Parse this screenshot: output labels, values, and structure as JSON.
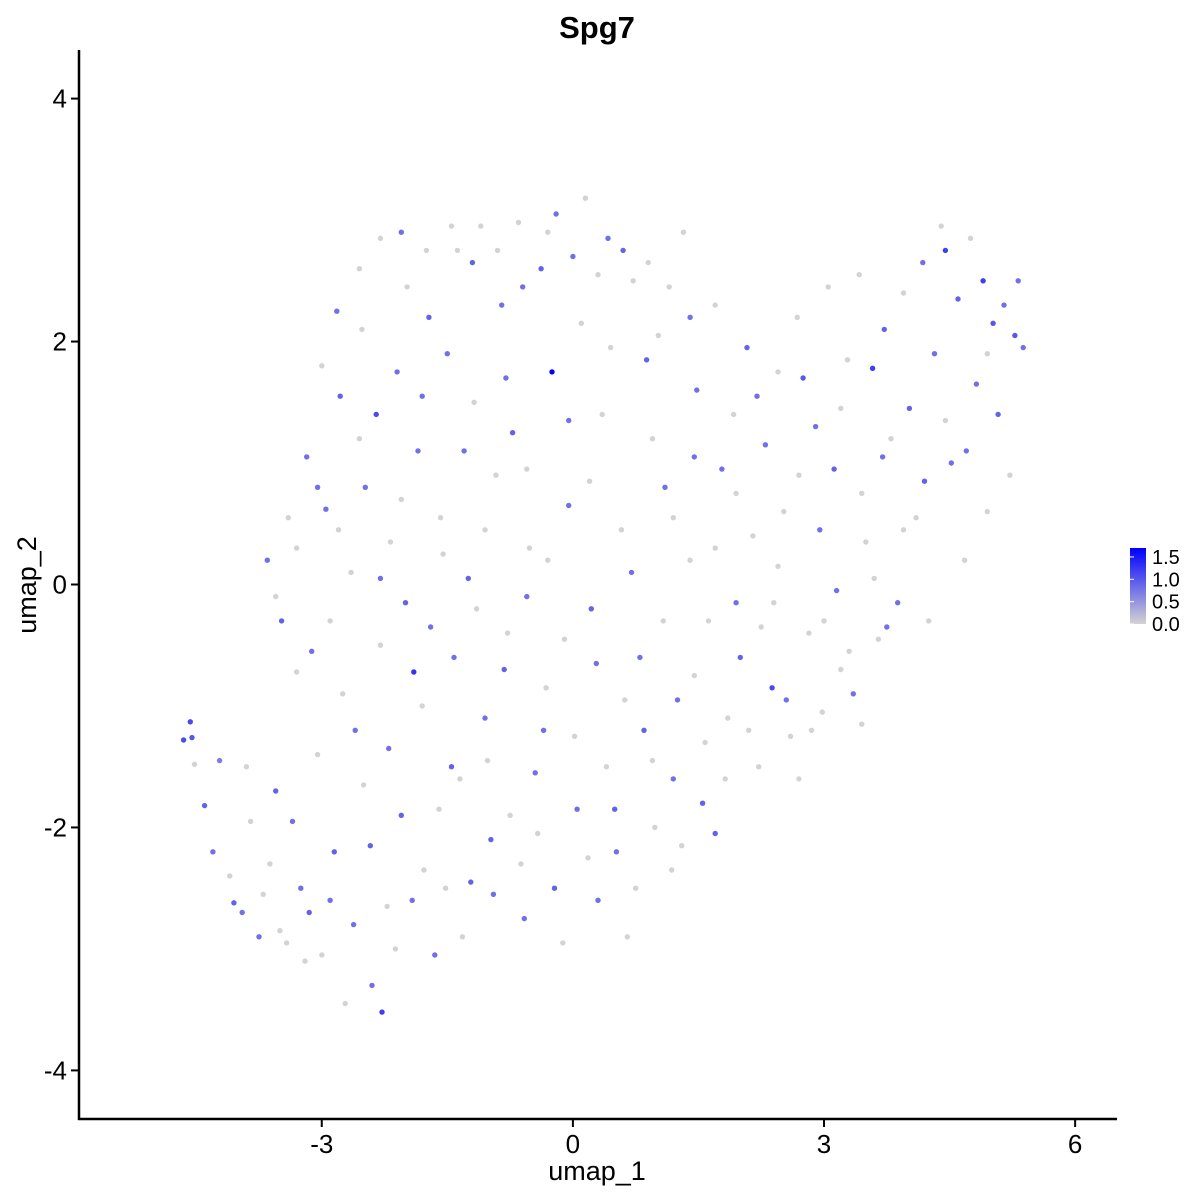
{
  "chart_data": {
    "type": "scatter",
    "title": "Spg7",
    "xlabel": "umap_1",
    "ylabel": "umap_2",
    "xlim": [
      -5.9,
      6.5
    ],
    "ylim": [
      -4.4,
      4.4
    ],
    "xticks": [
      -3,
      0,
      3,
      6
    ],
    "yticks": [
      -4,
      -2,
      0,
      2,
      4
    ],
    "xtick_labels": [
      "-3",
      "0",
      "3",
      "6"
    ],
    "ytick_labels": [
      "-4",
      "-2",
      "0",
      "2",
      "4"
    ],
    "grid": false,
    "legend": {
      "placement": "right",
      "type": "colorbar",
      "labels": [
        "1.5",
        "1.0",
        "0.5",
        "0.0"
      ],
      "values": [
        1.5,
        1.0,
        0.5,
        0.0
      ],
      "range": [
        0.0,
        1.7
      ],
      "low_color": "#d3d3d3",
      "high_color": "#0000ff"
    },
    "point_color_low": "#d3d3d3",
    "point_color_high": "#0000ff",
    "points": [
      [
        -4.65,
        -1.28,
        1.1
      ],
      [
        -4.57,
        -1.13,
        1.1
      ],
      [
        -4.55,
        -1.26,
        1.0
      ],
      [
        -4.52,
        -1.48,
        0.0
      ],
      [
        -4.4,
        -1.82,
        0.9
      ],
      [
        -4.3,
        -2.2,
        0.8
      ],
      [
        -4.22,
        -1.45,
        0.7
      ],
      [
        -4.1,
        -2.4,
        0.0
      ],
      [
        -4.05,
        -2.62,
        0.9
      ],
      [
        -3.95,
        -2.7,
        0.8
      ],
      [
        -3.85,
        -1.95,
        0.0
      ],
      [
        -3.75,
        -2.9,
        0.8
      ],
      [
        -3.62,
        -2.3,
        0.0
      ],
      [
        -3.55,
        -1.7,
        0.9
      ],
      [
        -3.48,
        -0.3,
        0.9
      ],
      [
        -3.42,
        -2.95,
        0.0
      ],
      [
        -3.3,
        -0.72,
        0.0
      ],
      [
        -3.25,
        -2.5,
        0.8
      ],
      [
        -3.2,
        -3.1,
        0.0
      ],
      [
        -3.12,
        -0.55,
        0.8
      ],
      [
        -3.0,
        -3.05,
        0.0
      ],
      [
        -2.95,
        0.62,
        0.8
      ],
      [
        -2.9,
        -0.3,
        0.0
      ],
      [
        -2.85,
        -2.2,
        0.9
      ],
      [
        -2.78,
        1.55,
        0.9
      ],
      [
        -2.72,
        -3.45,
        0.0
      ],
      [
        -2.65,
        0.1,
        0.0
      ],
      [
        -2.6,
        -1.2,
        0.8
      ],
      [
        -2.52,
        2.1,
        0.0
      ],
      [
        -2.48,
        0.8,
        0.8
      ],
      [
        -2.4,
        -3.3,
        0.8
      ],
      [
        -2.35,
        1.4,
        1.1
      ],
      [
        -2.28,
        -3.52,
        1.2
      ],
      [
        -2.22,
        -2.65,
        0.0
      ],
      [
        -2.18,
        0.35,
        0.0
      ],
      [
        -2.1,
        1.75,
        0.8
      ],
      [
        -2.05,
        -1.9,
        0.9
      ],
      [
        -1.98,
        2.45,
        0.0
      ],
      [
        -1.9,
        -0.72,
        1.3
      ],
      [
        -1.85,
        1.1,
        0.8
      ],
      [
        -1.78,
        -2.35,
        0.0
      ],
      [
        -1.72,
        2.2,
        0.9
      ],
      [
        -1.65,
        -3.05,
        0.8
      ],
      [
        -1.58,
        0.55,
        0.0
      ],
      [
        -1.5,
        1.9,
        0.8
      ],
      [
        -1.45,
        -1.5,
        0.9
      ],
      [
        -1.38,
        2.75,
        0.0
      ],
      [
        -1.32,
        -2.9,
        0.0
      ],
      [
        -1.25,
        0.05,
        0.9
      ],
      [
        -1.18,
        1.5,
        0.0
      ],
      [
        -1.1,
        2.95,
        0.0
      ],
      [
        -1.05,
        -1.1,
        0.8
      ],
      [
        -0.98,
        -2.1,
        0.9
      ],
      [
        -0.92,
        0.9,
        0.0
      ],
      [
        -0.85,
        2.3,
        0.8
      ],
      [
        -0.78,
        -0.4,
        0.0
      ],
      [
        -0.72,
        1.25,
        0.9
      ],
      [
        -0.65,
        2.98,
        0.0
      ],
      [
        -0.58,
        -2.75,
        0.8
      ],
      [
        -0.52,
        0.3,
        0.0
      ],
      [
        -0.45,
        -1.55,
        0.8
      ],
      [
        -0.38,
        2.6,
        0.9
      ],
      [
        -0.32,
        -0.85,
        0.0
      ],
      [
        -0.25,
        1.75,
        1.7
      ],
      [
        -0.2,
        3.05,
        0.8
      ],
      [
        -0.12,
        -2.95,
        0.0
      ],
      [
        -0.05,
        0.65,
        0.8
      ],
      [
        0.02,
        -1.25,
        0.0
      ],
      [
        0.1,
        2.15,
        0.0
      ],
      [
        0.15,
        3.18,
        0.0
      ],
      [
        0.22,
        -0.2,
        0.9
      ],
      [
        0.3,
        -2.6,
        0.8
      ],
      [
        0.35,
        1.4,
        0.0
      ],
      [
        0.42,
        2.85,
        0.8
      ],
      [
        0.5,
        -1.85,
        0.9
      ],
      [
        0.58,
        0.45,
        0.0
      ],
      [
        0.65,
        -2.9,
        0.0
      ],
      [
        0.72,
        2.5,
        0.0
      ],
      [
        0.8,
        -0.6,
        0.8
      ],
      [
        0.88,
        1.85,
        0.9
      ],
      [
        0.95,
        -1.45,
        0.0
      ],
      [
        1.02,
        2.05,
        0.0
      ],
      [
        1.1,
        0.8,
        0.8
      ],
      [
        1.18,
        -2.35,
        0.0
      ],
      [
        1.25,
        -0.95,
        0.8
      ],
      [
        1.32,
        2.9,
        0.0
      ],
      [
        1.4,
        0.2,
        0.0
      ],
      [
        1.48,
        1.6,
        0.8
      ],
      [
        1.55,
        -1.8,
        0.9
      ],
      [
        1.62,
        -0.3,
        0.0
      ],
      [
        1.7,
        2.3,
        0.0
      ],
      [
        1.78,
        0.95,
        0.8
      ],
      [
        1.85,
        -1.1,
        0.0
      ],
      [
        1.92,
        1.4,
        0.0
      ],
      [
        2.0,
        -0.6,
        0.9
      ],
      [
        2.08,
        1.95,
        0.9
      ],
      [
        2.15,
        0.4,
        0.0
      ],
      [
        2.22,
        -1.5,
        0.0
      ],
      [
        2.3,
        1.15,
        0.8
      ],
      [
        2.38,
        -0.85,
        1.1
      ],
      [
        2.45,
        1.75,
        0.0
      ],
      [
        2.52,
        0.6,
        0.0
      ],
      [
        2.6,
        -1.25,
        0.0
      ],
      [
        2.68,
        2.2,
        0.0
      ],
      [
        2.75,
        1.7,
        1.0
      ],
      [
        2.82,
        -0.4,
        0.0
      ],
      [
        2.9,
        1.3,
        0.8
      ],
      [
        2.98,
        -1.05,
        0.0
      ],
      [
        3.05,
        2.45,
        0.0
      ],
      [
        3.12,
        0.95,
        0.9
      ],
      [
        3.2,
        -0.7,
        0.0
      ],
      [
        3.28,
        1.85,
        0.0
      ],
      [
        3.35,
        -0.9,
        0.8
      ],
      [
        3.42,
        2.55,
        0.0
      ],
      [
        3.5,
        0.35,
        0.0
      ],
      [
        3.58,
        1.78,
        1.2
      ],
      [
        3.65,
        -0.45,
        0.0
      ],
      [
        3.72,
        2.1,
        0.9
      ],
      [
        3.8,
        1.2,
        0.0
      ],
      [
        3.88,
        -0.15,
        0.8
      ],
      [
        3.95,
        2.4,
        0.0
      ],
      [
        4.02,
        1.45,
        0.9
      ],
      [
        4.1,
        0.55,
        0.0
      ],
      [
        4.18,
        2.65,
        0.8
      ],
      [
        4.25,
        -0.3,
        0.0
      ],
      [
        4.32,
        1.9,
        0.8
      ],
      [
        4.4,
        2.95,
        0.0
      ],
      [
        4.45,
        2.75,
        1.2
      ],
      [
        4.52,
        1.0,
        0.8
      ],
      [
        4.6,
        2.35,
        0.9
      ],
      [
        4.68,
        0.2,
        0.0
      ],
      [
        4.75,
        2.85,
        0.0
      ],
      [
        4.82,
        1.65,
        0.8
      ],
      [
        4.9,
        2.5,
        1.2
      ],
      [
        4.95,
        0.6,
        0.0
      ],
      [
        5.02,
        2.15,
        1.0
      ],
      [
        5.08,
        1.4,
        0.9
      ],
      [
        5.15,
        2.3,
        0.8
      ],
      [
        5.22,
        0.9,
        0.0
      ],
      [
        5.28,
        2.05,
        1.0
      ],
      [
        5.32,
        2.5,
        0.8
      ],
      [
        5.38,
        1.95,
        0.8
      ],
      [
        -3.9,
        -1.5,
        0.0
      ],
      [
        -3.7,
        -2.55,
        0.0
      ],
      [
        -3.5,
        -2.85,
        0.0
      ],
      [
        -3.35,
        -1.95,
        0.8
      ],
      [
        -3.15,
        -2.7,
        0.9
      ],
      [
        -3.05,
        -1.4,
        0.0
      ],
      [
        -2.9,
        -2.6,
        0.8
      ],
      [
        -2.75,
        -0.9,
        0.0
      ],
      [
        -2.62,
        -2.8,
        0.8
      ],
      [
        -2.5,
        -1.65,
        0.0
      ],
      [
        -2.42,
        -2.15,
        0.9
      ],
      [
        -2.3,
        -0.5,
        0.0
      ],
      [
        -2.2,
        -1.35,
        0.8
      ],
      [
        -2.12,
        -3.0,
        0.0
      ],
      [
        -2.0,
        -0.15,
        0.9
      ],
      [
        -1.92,
        -2.6,
        0.8
      ],
      [
        -1.8,
        -1.0,
        0.0
      ],
      [
        -1.7,
        -0.35,
        0.8
      ],
      [
        -1.6,
        -1.85,
        0.0
      ],
      [
        -1.52,
        -2.5,
        0.0
      ],
      [
        -1.42,
        -0.6,
        0.8
      ],
      [
        -1.35,
        -1.6,
        0.0
      ],
      [
        -1.22,
        -2.45,
        0.9
      ],
      [
        -1.15,
        -0.2,
        0.0
      ],
      [
        -1.02,
        -1.45,
        0.0
      ],
      [
        -0.95,
        -2.55,
        0.8
      ],
      [
        -0.82,
        -0.7,
        0.9
      ],
      [
        -0.75,
        -1.9,
        0.0
      ],
      [
        -0.62,
        -2.3,
        0.0
      ],
      [
        -0.55,
        -0.1,
        0.8
      ],
      [
        -0.42,
        -2.05,
        0.0
      ],
      [
        -0.35,
        -1.2,
        0.8
      ],
      [
        -0.22,
        -2.5,
        0.9
      ],
      [
        -0.1,
        -0.45,
        0.0
      ],
      [
        0.05,
        -1.85,
        0.8
      ],
      [
        0.18,
        -2.25,
        0.0
      ],
      [
        0.28,
        -0.65,
        0.8
      ],
      [
        0.4,
        -1.5,
        0.0
      ],
      [
        0.52,
        -2.2,
        0.8
      ],
      [
        0.62,
        -0.95,
        0.0
      ],
      [
        0.75,
        -2.5,
        0.0
      ],
      [
        0.85,
        -1.2,
        0.9
      ],
      [
        0.98,
        -2.0,
        0.0
      ],
      [
        1.08,
        -0.3,
        0.0
      ],
      [
        1.2,
        -1.6,
        0.8
      ],
      [
        1.3,
        -2.15,
        0.0
      ],
      [
        1.45,
        -0.75,
        0.0
      ],
      [
        1.58,
        -1.3,
        0.0
      ],
      [
        1.7,
        -2.05,
        0.9
      ],
      [
        1.82,
        -1.6,
        0.0
      ],
      [
        1.95,
        -0.15,
        0.8
      ],
      [
        2.1,
        -1.2,
        0.0
      ],
      [
        2.25,
        -0.35,
        0.0
      ],
      [
        2.4,
        -0.15,
        0.0
      ],
      [
        2.55,
        -0.95,
        0.8
      ],
      [
        2.7,
        -1.6,
        0.0
      ],
      [
        2.85,
        -1.2,
        0.0
      ],
      [
        3.0,
        -0.3,
        0.0
      ],
      [
        3.15,
        -0.05,
        0.8
      ],
      [
        3.3,
        -0.55,
        0.0
      ],
      [
        3.45,
        -1.15,
        0.0
      ],
      [
        3.6,
        0.05,
        0.0
      ],
      [
        3.75,
        -0.35,
        0.8
      ],
      [
        -3.65,
        0.2,
        0.8
      ],
      [
        -3.4,
        0.55,
        0.0
      ],
      [
        -3.18,
        1.05,
        0.8
      ],
      [
        -3.0,
        1.8,
        0.0
      ],
      [
        -2.82,
        2.25,
        0.8
      ],
      [
        -2.55,
        2.6,
        0.0
      ],
      [
        -2.3,
        2.85,
        0.0
      ],
      [
        -2.05,
        2.9,
        0.8
      ],
      [
        -1.75,
        2.75,
        0.0
      ],
      [
        -1.45,
        2.95,
        0.0
      ],
      [
        -1.2,
        2.65,
        0.9
      ],
      [
        -0.9,
        2.75,
        0.0
      ],
      [
        -0.6,
        2.45,
        0.8
      ],
      [
        -0.3,
        2.9,
        0.0
      ],
      [
        0.0,
        2.7,
        0.8
      ],
      [
        0.3,
        2.55,
        0.0
      ],
      [
        0.6,
        2.75,
        0.9
      ],
      [
        0.9,
        2.65,
        0.0
      ],
      [
        1.15,
        2.45,
        0.0
      ],
      [
        1.4,
        2.2,
        0.8
      ],
      [
        -3.55,
        -0.1,
        0.0
      ],
      [
        -3.3,
        0.3,
        0.0
      ],
      [
        -3.05,
        0.8,
        0.8
      ],
      [
        -2.8,
        0.45,
        0.0
      ],
      [
        -2.55,
        1.2,
        0.0
      ],
      [
        -2.3,
        0.05,
        0.8
      ],
      [
        -2.05,
        0.7,
        0.0
      ],
      [
        -1.8,
        1.55,
        0.8
      ],
      [
        -1.55,
        0.25,
        0.0
      ],
      [
        -1.3,
        1.1,
        0.8
      ],
      [
        -1.05,
        0.45,
        0.0
      ],
      [
        -0.8,
        1.7,
        0.8
      ],
      [
        -0.55,
        0.95,
        0.0
      ],
      [
        -0.3,
        0.2,
        0.0
      ],
      [
        -0.05,
        1.35,
        0.8
      ],
      [
        0.2,
        0.85,
        0.0
      ],
      [
        0.45,
        1.95,
        0.0
      ],
      [
        0.7,
        0.1,
        0.8
      ],
      [
        0.95,
        1.2,
        0.0
      ],
      [
        1.2,
        0.55,
        0.0
      ],
      [
        1.45,
        1.05,
        0.8
      ],
      [
        1.7,
        0.3,
        0.0
      ],
      [
        1.95,
        0.75,
        0.0
      ],
      [
        2.2,
        1.55,
        0.8
      ],
      [
        2.45,
        0.15,
        0.0
      ],
      [
        2.7,
        0.9,
        0.0
      ],
      [
        2.95,
        0.45,
        0.8
      ],
      [
        3.2,
        1.45,
        0.0
      ],
      [
        3.45,
        0.75,
        0.0
      ],
      [
        3.7,
        1.05,
        0.8
      ],
      [
        3.95,
        0.45,
        0.0
      ],
      [
        4.2,
        0.85,
        0.9
      ],
      [
        4.45,
        1.35,
        0.0
      ],
      [
        4.7,
        1.1,
        0.8
      ],
      [
        4.95,
        1.9,
        0.0
      ]
    ]
  }
}
